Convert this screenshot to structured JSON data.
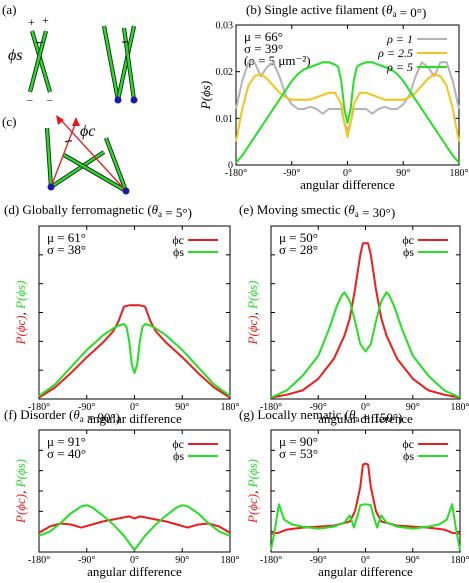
{
  "figure": {
    "colors": {
      "red": "#ee1c1c",
      "green": "#22e022",
      "gold": "#f5c41a",
      "grey": "#b4b4b4",
      "blue": "#1a1aa8",
      "arrow": "#e81818"
    },
    "schematics": {
      "a": {
        "label": "(a)",
        "symbol": "ϕs",
        "plus_marks": [
          "+",
          "+"
        ],
        "minus_marks": [
          "–",
          "–"
        ]
      },
      "c": {
        "label": "(c)",
        "symbol": "ϕc"
      }
    }
  },
  "chart_data": [
    {
      "panel": "(b)",
      "type": "line",
      "title": "Single active filament (θa = 0°)",
      "xlabel": "angular difference",
      "ylabel": "P(ϕs)",
      "xlim": [
        -180,
        180
      ],
      "ylim": [
        0,
        0.03
      ],
      "xticks": [
        -180,
        -90,
        0,
        90,
        180
      ],
      "xtick_labels": [
        "-180°",
        "-90°",
        "0°",
        "90°",
        "180°"
      ],
      "yticks": [
        0,
        0.01,
        0.02,
        0.03
      ],
      "ytick_labels": [
        "0",
        "0.01",
        "0.02",
        "0.03"
      ],
      "annotations": [
        "μ = 66°",
        "σ = 39°",
        "(ρ = 5 μm⁻²)"
      ],
      "legend_position": "top-right",
      "series": [
        {
          "name": "ρ = 1",
          "color": "grey",
          "x": [
            -180,
            -170,
            -160,
            -150,
            -140,
            -130,
            -120,
            -110,
            -100,
            -90,
            -80,
            -70,
            -60,
            -50,
            -40,
            -30,
            -20,
            -10,
            -5,
            0,
            5,
            10,
            20,
            30,
            40,
            50,
            60,
            70,
            80,
            90,
            100,
            110,
            120,
            130,
            140,
            150,
            160,
            170,
            180
          ],
          "y": [
            0.012,
            0.018,
            0.022,
            0.022,
            0.019,
            0.021,
            0.022,
            0.019,
            0.015,
            0.013,
            0.012,
            0.012,
            0.0125,
            0.012,
            0.011,
            0.012,
            0.012,
            0.012,
            0.009,
            0.0075,
            0.009,
            0.012,
            0.012,
            0.012,
            0.011,
            0.012,
            0.0125,
            0.012,
            0.012,
            0.013,
            0.015,
            0.019,
            0.022,
            0.021,
            0.019,
            0.022,
            0.022,
            0.018,
            0.012
          ]
        },
        {
          "name": "ρ = 2.5",
          "color": "gold",
          "x": [
            -180,
            -170,
            -160,
            -150,
            -140,
            -130,
            -120,
            -110,
            -100,
            -90,
            -80,
            -70,
            -60,
            -50,
            -40,
            -30,
            -20,
            -10,
            -5,
            0,
            5,
            10,
            20,
            30,
            40,
            50,
            60,
            70,
            80,
            90,
            100,
            110,
            120,
            130,
            140,
            150,
            160,
            170,
            180
          ],
          "y": [
            0.005,
            0.012,
            0.017,
            0.019,
            0.0195,
            0.0185,
            0.017,
            0.0155,
            0.0145,
            0.014,
            0.014,
            0.014,
            0.014,
            0.0145,
            0.015,
            0.0155,
            0.0155,
            0.013,
            0.009,
            0.006,
            0.009,
            0.013,
            0.0155,
            0.0155,
            0.015,
            0.0145,
            0.014,
            0.014,
            0.014,
            0.014,
            0.0145,
            0.0155,
            0.017,
            0.0185,
            0.0195,
            0.019,
            0.017,
            0.012,
            0.005
          ]
        },
        {
          "name": "ρ = 5",
          "color": "green",
          "x": [
            -180,
            -170,
            -160,
            -150,
            -140,
            -130,
            -120,
            -110,
            -100,
            -90,
            -80,
            -70,
            -60,
            -50,
            -40,
            -30,
            -20,
            -15,
            -10,
            -5,
            0,
            5,
            10,
            15,
            20,
            30,
            40,
            50,
            60,
            70,
            80,
            90,
            100,
            110,
            120,
            130,
            140,
            150,
            160,
            170,
            180
          ],
          "y": [
            0.0005,
            0.002,
            0.004,
            0.006,
            0.008,
            0.01,
            0.012,
            0.014,
            0.016,
            0.018,
            0.0195,
            0.0205,
            0.021,
            0.0215,
            0.022,
            0.022,
            0.0215,
            0.021,
            0.018,
            0.012,
            0.009,
            0.012,
            0.018,
            0.021,
            0.0215,
            0.022,
            0.022,
            0.0215,
            0.021,
            0.0205,
            0.0195,
            0.018,
            0.016,
            0.014,
            0.012,
            0.01,
            0.008,
            0.006,
            0.004,
            0.002,
            0.0005
          ]
        }
      ]
    },
    {
      "panel": "(d)",
      "type": "line",
      "title": "Globally ferromagnetic (θa = 5°)",
      "xlabel": "angular difference",
      "ylabel_parts": [
        "P(ϕc)",
        ", ",
        "P(ϕs)"
      ],
      "xlim": [
        -180,
        180
      ],
      "ylim": [
        0,
        0.06
      ],
      "xticks": [
        -180,
        -90,
        0,
        90,
        180
      ],
      "xtick_labels": [
        "-180°",
        "-90°",
        "0°",
        "90°",
        "180°"
      ],
      "annotations": [
        "μ = 61°",
        "σ = 38°"
      ],
      "legend_position": "top-right",
      "series": [
        {
          "name": "ϕc",
          "color": "red",
          "x": [
            -180,
            -150,
            -120,
            -90,
            -60,
            -40,
            -30,
            -20,
            -10,
            0,
            10,
            20,
            30,
            40,
            60,
            90,
            120,
            150,
            180
          ],
          "y": [
            0.0005,
            0.004,
            0.009,
            0.0145,
            0.0195,
            0.0235,
            0.027,
            0.032,
            0.0325,
            0.0325,
            0.0325,
            0.032,
            0.027,
            0.0235,
            0.0195,
            0.0145,
            0.009,
            0.004,
            0.0005
          ]
        },
        {
          "name": "ϕs",
          "color": "green",
          "x": [
            -180,
            -150,
            -120,
            -90,
            -60,
            -40,
            -30,
            -20,
            -15,
            -10,
            -5,
            0,
            5,
            10,
            15,
            20,
            30,
            40,
            60,
            90,
            120,
            150,
            180
          ],
          "y": [
            0.001,
            0.005,
            0.011,
            0.017,
            0.022,
            0.0245,
            0.0255,
            0.026,
            0.025,
            0.02,
            0.012,
            0.009,
            0.012,
            0.02,
            0.025,
            0.026,
            0.0255,
            0.0245,
            0.022,
            0.017,
            0.011,
            0.005,
            0.001
          ]
        }
      ]
    },
    {
      "panel": "(e)",
      "type": "line",
      "title": "Moving smectic (θa = 30°)",
      "xlabel": "angular difference",
      "ylabel_parts": [
        "P(ϕc)",
        ", ",
        "P(ϕs)"
      ],
      "xlim": [
        -180,
        180
      ],
      "ylim": [
        0,
        0.06
      ],
      "xticks": [
        -180,
        -90,
        0,
        90,
        180
      ],
      "xtick_labels": [
        "-180°",
        "-90°",
        "0°",
        "90°",
        "180°"
      ],
      "annotations": [
        "μ = 50°",
        "σ = 28°"
      ],
      "legend_position": "top-right",
      "series": [
        {
          "name": "ϕc",
          "color": "red",
          "x": [
            -180,
            -150,
            -120,
            -90,
            -60,
            -40,
            -30,
            -20,
            -10,
            -5,
            0,
            5,
            10,
            20,
            30,
            40,
            60,
            90,
            120,
            150,
            180
          ],
          "y": [
            0.0005,
            0.0015,
            0.003,
            0.007,
            0.014,
            0.022,
            0.028,
            0.038,
            0.05,
            0.054,
            0.054,
            0.054,
            0.05,
            0.038,
            0.028,
            0.022,
            0.014,
            0.007,
            0.003,
            0.0015,
            0.0005
          ]
        },
        {
          "name": "ϕs",
          "color": "green",
          "x": [
            -180,
            -150,
            -120,
            -90,
            -70,
            -55,
            -45,
            -40,
            -30,
            -20,
            -10,
            0,
            10,
            20,
            30,
            40,
            45,
            55,
            70,
            90,
            120,
            150,
            180
          ],
          "y": [
            0.0005,
            0.003,
            0.008,
            0.015,
            0.024,
            0.032,
            0.036,
            0.037,
            0.034,
            0.027,
            0.019,
            0.0165,
            0.019,
            0.027,
            0.034,
            0.037,
            0.036,
            0.032,
            0.024,
            0.015,
            0.008,
            0.003,
            0.0005
          ]
        }
      ]
    },
    {
      "panel": "(f)",
      "type": "line",
      "title": "Disorder (θa = 90°)",
      "xlabel": "angular difference",
      "ylabel_parts": [
        "P(ϕc)",
        ", ",
        "P(ϕs)"
      ],
      "xlim": [
        -180,
        180
      ],
      "ylim": [
        0,
        0.06
      ],
      "xticks": [
        -180,
        -90,
        0,
        90,
        180
      ],
      "xtick_labels": [
        "-180°",
        "-90°",
        "0°",
        "90°",
        "180°"
      ],
      "annotations": [
        "μ = 91°",
        "σ = 40°"
      ],
      "legend_position": "top-right",
      "series": [
        {
          "name": "ϕc",
          "color": "red",
          "x": [
            -180,
            -160,
            -140,
            -120,
            -100,
            -80,
            -60,
            -40,
            -20,
            -10,
            0,
            10,
            20,
            40,
            60,
            80,
            100,
            120,
            140,
            160,
            180
          ],
          "y": [
            0.0095,
            0.0125,
            0.014,
            0.0135,
            0.012,
            0.0135,
            0.015,
            0.016,
            0.017,
            0.0175,
            0.0165,
            0.0175,
            0.017,
            0.016,
            0.015,
            0.0135,
            0.012,
            0.0135,
            0.014,
            0.0125,
            0.0095
          ]
        },
        {
          "name": "ϕs",
          "color": "green",
          "x": [
            -180,
            -160,
            -140,
            -120,
            -100,
            -90,
            -80,
            -60,
            -40,
            -20,
            -10,
            0,
            10,
            20,
            40,
            60,
            80,
            90,
            100,
            120,
            140,
            160,
            180
          ],
          "y": [
            0.008,
            0.01,
            0.014,
            0.019,
            0.0225,
            0.023,
            0.022,
            0.018,
            0.0135,
            0.008,
            0.0045,
            0.001,
            0.0045,
            0.008,
            0.0135,
            0.018,
            0.022,
            0.023,
            0.0225,
            0.019,
            0.014,
            0.01,
            0.008
          ]
        }
      ]
    },
    {
      "panel": "(g)",
      "type": "line",
      "title": "Locally nematic (θa = 150°)",
      "xlabel": "angular difference",
      "ylabel_parts": [
        "P(ϕc)",
        ", ",
        "P(ϕs)"
      ],
      "xlim": [
        -180,
        180
      ],
      "ylim": [
        0,
        0.06
      ],
      "xticks": [
        -180,
        -90,
        0,
        90,
        180
      ],
      "xtick_labels": [
        "-180°",
        "-90°",
        "0°",
        "90°",
        "180°"
      ],
      "annotations": [
        "μ = 90°",
        "σ = 53°"
      ],
      "legend_position": "top-right",
      "series": [
        {
          "name": "ϕc",
          "color": "red",
          "x": [
            -180,
            -165,
            -150,
            -120,
            -90,
            -60,
            -30,
            -20,
            -10,
            -5,
            0,
            5,
            10,
            20,
            30,
            60,
            90,
            120,
            150,
            165,
            180
          ],
          "y": [
            0.009,
            0.0095,
            0.011,
            0.012,
            0.0125,
            0.013,
            0.015,
            0.02,
            0.032,
            0.043,
            0.0435,
            0.043,
            0.032,
            0.02,
            0.015,
            0.013,
            0.0125,
            0.012,
            0.011,
            0.0095,
            0.009
          ]
        },
        {
          "name": "ϕs",
          "color": "green",
          "x": [
            -180,
            -172,
            -165,
            -155,
            -140,
            -120,
            -90,
            -60,
            -40,
            -30,
            -22,
            -15,
            -10,
            0,
            10,
            15,
            22,
            30,
            40,
            60,
            90,
            120,
            140,
            155,
            165,
            172,
            180
          ],
          "y": [
            0.001,
            0.012,
            0.0235,
            0.016,
            0.0135,
            0.0125,
            0.0115,
            0.0125,
            0.0145,
            0.018,
            0.012,
            0.018,
            0.023,
            0.0235,
            0.023,
            0.018,
            0.012,
            0.018,
            0.0145,
            0.0125,
            0.0115,
            0.0125,
            0.0135,
            0.016,
            0.0235,
            0.012,
            0.001
          ]
        }
      ]
    }
  ]
}
